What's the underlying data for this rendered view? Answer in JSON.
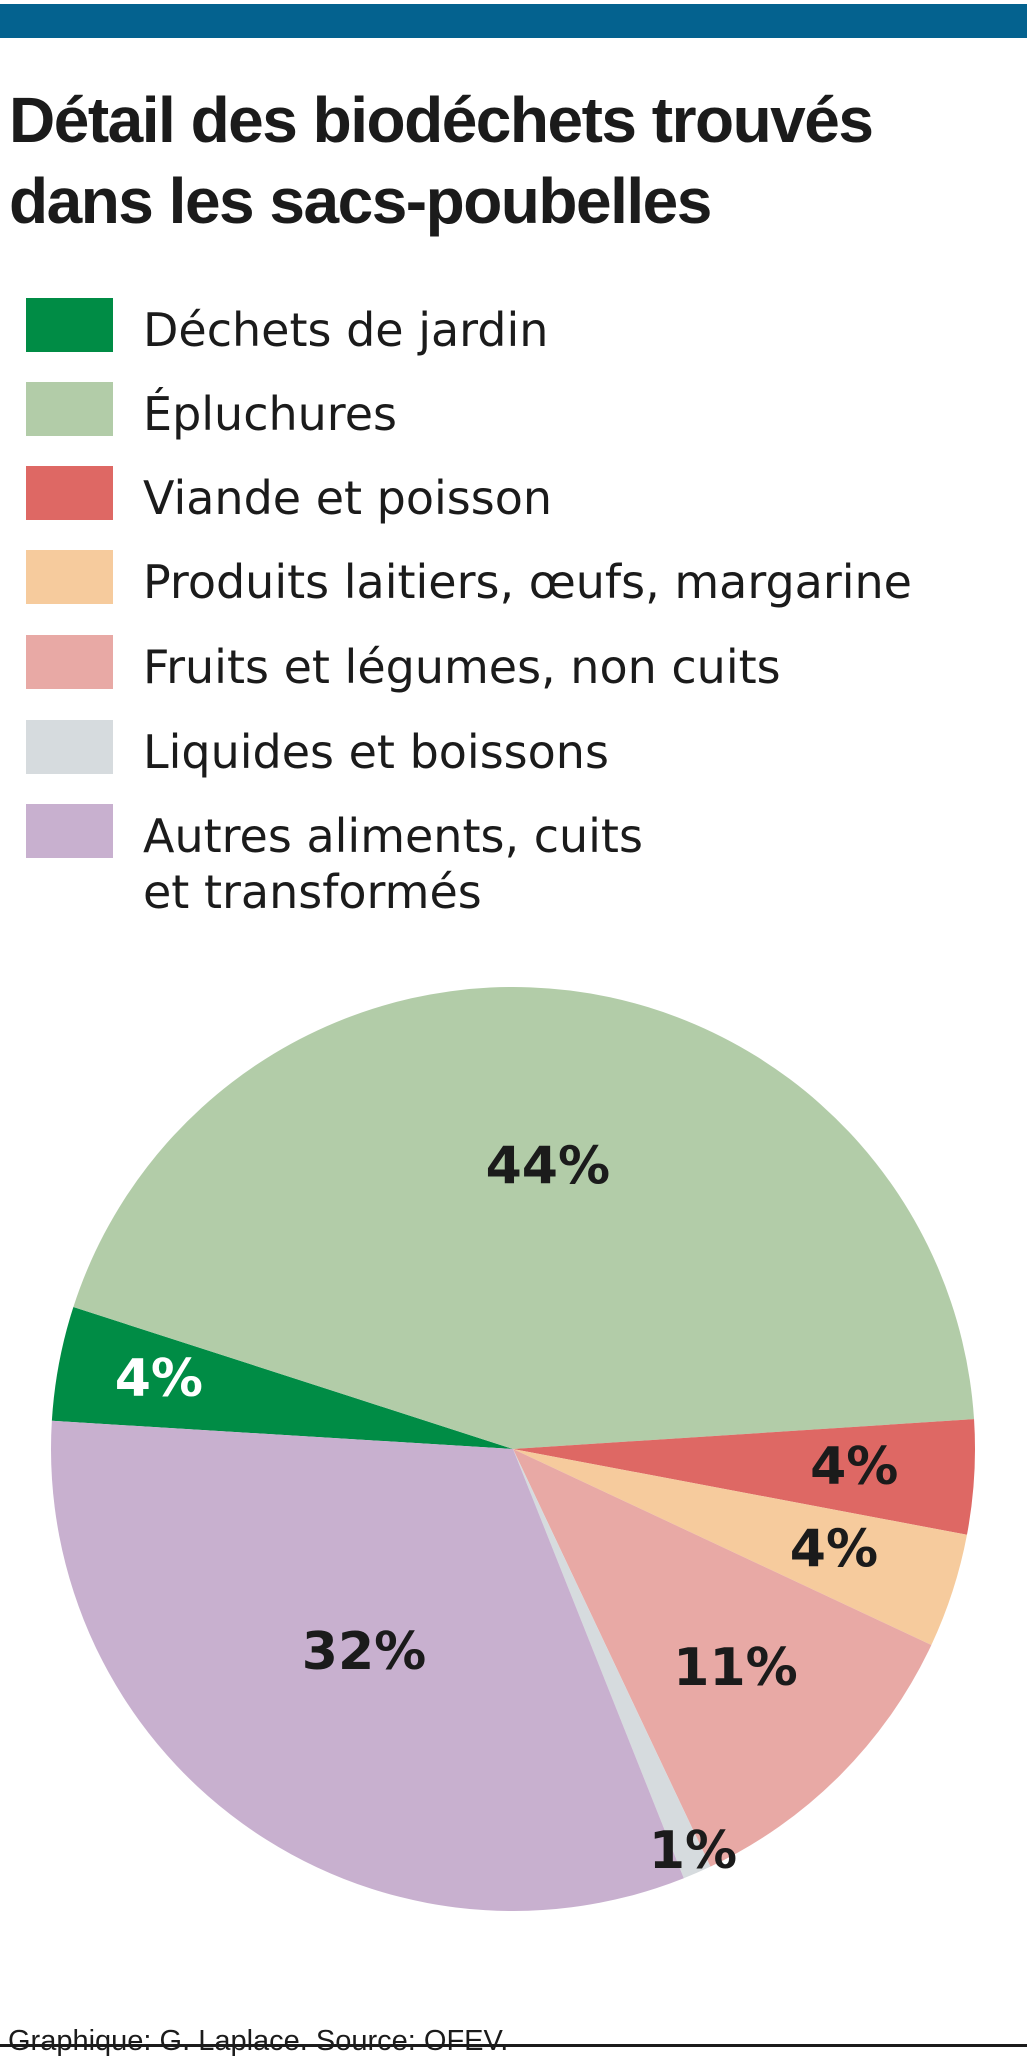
{
  "header": {
    "accent_color": "#04628f",
    "title": "Détail des biodéchets trouvés dans les sacs-poubelles"
  },
  "footer": {
    "credit": "Graphique: G. Laplace. Source: OFEV."
  },
  "chart_data": {
    "type": "pie",
    "title": "Détail des biodéchets trouvés dans les sacs-poubelles",
    "legend_position": "top",
    "slices": [
      {
        "name": "Déchets de jardin",
        "value": 4,
        "label": "4%",
        "color": "#008c45",
        "label_color": "#ffffff"
      },
      {
        "name": "Épluchures",
        "value": 44,
        "label": "44%",
        "color": "#b2cca8",
        "label_color": "#1b1b1b"
      },
      {
        "name": "Viande et poisson",
        "value": 4,
        "label": "4%",
        "color": "#de6864",
        "label_color": "#1b1b1b"
      },
      {
        "name": "Produits laitiers, œufs, margarine",
        "value": 4,
        "label": "4%",
        "color": "#f6cb9d",
        "label_color": "#1b1b1b"
      },
      {
        "name": "Fruits et légumes, non cuits",
        "value": 11,
        "label": "11%",
        "color": "#e8a9a5",
        "label_color": "#1b1b1b"
      },
      {
        "name": "Liquides et boissons",
        "value": 1,
        "label": "1%",
        "color": "#d6dbde",
        "label_color": "#1b1b1b"
      },
      {
        "name": "Autres aliments, cuits\net transformés",
        "value": 32,
        "label": "32%",
        "color": "#c8b0cf",
        "label_color": "#1b1b1b"
      }
    ]
  }
}
